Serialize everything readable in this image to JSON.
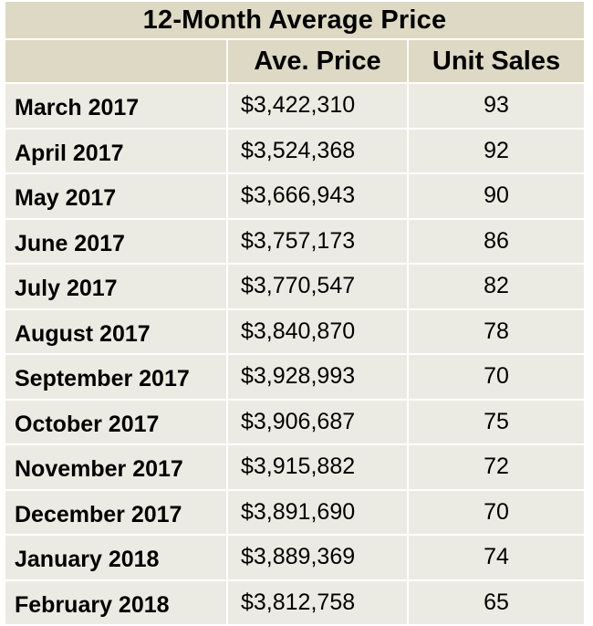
{
  "chart_data": {
    "type": "table",
    "title": "12-Month Average Price",
    "columns": [
      "",
      "Ave. Price",
      "Unit Sales"
    ],
    "rows": [
      {
        "month": "March 2017",
        "price": "$3,422,310",
        "sales": "93"
      },
      {
        "month": "April 2017",
        "price": "$3,524,368",
        "sales": "92"
      },
      {
        "month": "May 2017",
        "price": "$3,666,943",
        "sales": "90"
      },
      {
        "month": "June 2017",
        "price": "$3,757,173",
        "sales": "86"
      },
      {
        "month": "July 2017",
        "price": "$3,770,547",
        "sales": "82"
      },
      {
        "month": "August 2017",
        "price": "$3,840,870",
        "sales": "78"
      },
      {
        "month": "September 2017",
        "price": "$3,928,993",
        "sales": "70"
      },
      {
        "month": "October 2017",
        "price": "$3,906,687",
        "sales": "75"
      },
      {
        "month": "November 2017",
        "price": "$3,915,882",
        "sales": "72"
      },
      {
        "month": "December 2017",
        "price": "$3,891,690",
        "sales": "70"
      },
      {
        "month": "January 2018",
        "price": "$3,889,369",
        "sales": "74"
      },
      {
        "month": "February 2018",
        "price": "$3,812,758",
        "sales": "65"
      }
    ]
  },
  "colors": {
    "header_background": "#ddd9c4",
    "cell_background": "#ecebe3",
    "grid": "#ffffff",
    "text": "#000000"
  }
}
